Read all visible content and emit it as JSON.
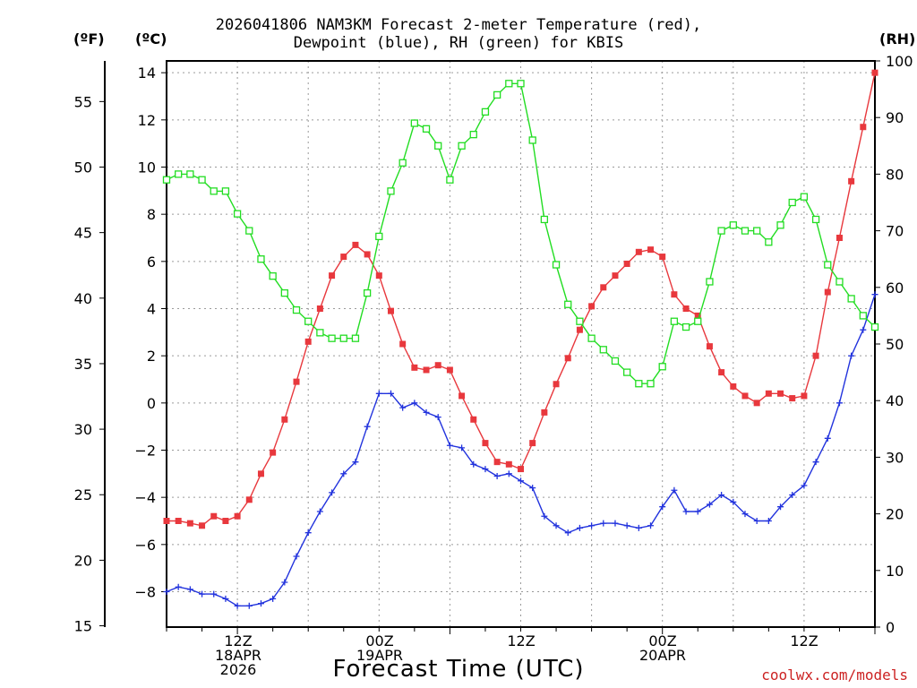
{
  "title_line1": "2026041806 NAM3KM Forecast 2-meter Temperature (red),",
  "title_line2": "Dewpoint (blue), RH (green) for KBIS",
  "unit_left_f": "(ºF)",
  "unit_left_c": "(ºC)",
  "unit_right": "(RH)",
  "x_title": "Forecast Time (UTC)",
  "credit": "coolwx.com/models",
  "x_labels": [
    {
      "l1": "12Z",
      "l2": "18APR",
      "l3": "2026"
    },
    {
      "l1": "00Z",
      "l2": "19APR",
      "l3": ""
    },
    {
      "l1": "12Z",
      "l2": "",
      "l3": ""
    },
    {
      "l1": "00Z",
      "l2": "20APR",
      "l3": ""
    },
    {
      "l1": "12Z",
      "l2": "",
      "l3": ""
    }
  ],
  "chart_data": {
    "type": "line",
    "title": "2026041806 NAM3KM Forecast 2-meter Temperature (red), Dewpoint (blue), RH (green) for KBIS",
    "xlabel": "Forecast Time (UTC)",
    "x_hours": [
      0,
      1,
      2,
      3,
      4,
      5,
      6,
      7,
      8,
      9,
      10,
      11,
      12,
      13,
      14,
      15,
      16,
      17,
      18,
      19,
      20,
      21,
      22,
      23,
      24,
      25,
      26,
      27,
      28,
      29,
      30,
      31,
      32,
      33,
      34,
      35,
      36,
      37,
      38,
      39,
      40,
      41,
      42,
      43,
      44,
      45,
      46,
      47,
      48,
      49,
      50,
      51,
      52,
      53,
      54,
      55,
      56,
      57,
      58,
      59,
      60
    ],
    "x_start": "2026-04-18 06Z",
    "ylim_celsius": [
      -9.5,
      14.5
    ],
    "ylim_fahrenheit": [
      15,
      58
    ],
    "ylim_rh": [
      0,
      100
    ],
    "yticks_celsius": [
      -8,
      -6,
      -4,
      -2,
      0,
      2,
      4,
      6,
      8,
      10,
      12,
      14
    ],
    "yticks_fahrenheit": [
      15,
      20,
      25,
      30,
      35,
      40,
      45,
      50,
      55
    ],
    "yticks_rh": [
      0,
      10,
      20,
      30,
      40,
      50,
      60,
      70,
      80,
      90,
      100
    ],
    "series": [
      {
        "name": "Temperature",
        "axis": "celsius",
        "color": "#e8383d",
        "marker": "filled-square",
        "values": [
          -5.0,
          -5.0,
          -5.1,
          -5.2,
          -4.8,
          -5.0,
          -4.8,
          -4.1,
          -3.0,
          -2.1,
          -0.7,
          0.9,
          2.6,
          4.0,
          5.4,
          6.2,
          6.7,
          6.3,
          5.4,
          3.9,
          2.5,
          1.5,
          1.4,
          1.6,
          1.4,
          0.3,
          -0.7,
          -1.7,
          -2.5,
          -2.6,
          -2.8,
          -1.7,
          -0.4,
          0.8,
          1.9,
          3.1,
          4.1,
          4.9,
          5.4,
          5.9,
          6.4,
          6.5,
          6.2,
          4.6,
          4.0,
          3.7,
          2.4,
          1.3,
          0.7,
          0.3,
          0.0,
          0.4,
          0.4,
          0.2,
          0.3,
          2.0,
          4.7,
          7.0,
          9.4,
          11.7,
          14.0
        ]
      },
      {
        "name": "Dewpoint",
        "axis": "celsius",
        "color": "#2233dd",
        "marker": "plus",
        "values": [
          -8.0,
          -7.8,
          -7.9,
          -8.1,
          -8.1,
          -8.3,
          -8.6,
          -8.6,
          -8.5,
          -8.3,
          -7.6,
          -6.5,
          -5.5,
          -4.6,
          -3.8,
          -3.0,
          -2.5,
          -1.0,
          0.4,
          0.4,
          -0.2,
          0.0,
          -0.4,
          -0.6,
          -1.8,
          -1.9,
          -2.6,
          -2.8,
          -3.1,
          -3.0,
          -3.3,
          -3.6,
          -4.8,
          -5.2,
          -5.5,
          -5.3,
          -5.2,
          -5.1,
          -5.1,
          -5.2,
          -5.3,
          -5.2,
          -4.4,
          -3.7,
          -4.6,
          -4.6,
          -4.3,
          -3.9,
          -4.2,
          -4.7,
          -5.0,
          -5.0,
          -4.4,
          -3.9,
          -3.5,
          -2.5,
          -1.5,
          0.0,
          2.0,
          3.1,
          4.6
        ]
      },
      {
        "name": "RH",
        "axis": "rh",
        "color": "#22dd22",
        "marker": "open-square",
        "values": [
          79,
          80,
          80,
          79,
          77,
          77,
          73,
          70,
          65,
          62,
          59,
          56,
          54,
          52,
          51,
          51,
          51,
          59,
          69,
          77,
          82,
          89,
          88,
          85,
          79,
          85,
          87,
          91,
          94,
          96,
          96,
          86,
          72,
          64,
          57,
          54,
          51,
          49,
          47,
          45,
          43,
          43,
          46,
          54,
          53,
          54,
          61,
          70,
          71,
          70,
          70,
          68,
          71,
          75,
          76,
          72,
          64,
          61,
          58,
          55,
          53
        ]
      }
    ]
  }
}
